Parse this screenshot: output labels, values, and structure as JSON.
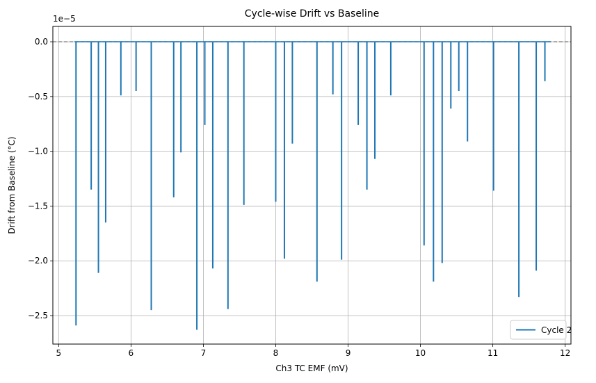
{
  "chart_data": {
    "type": "line",
    "title": "Cycle-wise Drift vs Baseline",
    "xlabel": "Ch3 TC EMF (mV)",
    "ylabel": "Drift from Baseline (°C)",
    "y_offset_label": "1e−5",
    "xlim": [
      4.92,
      12.08
    ],
    "ylim": [
      -2.76,
      0.14
    ],
    "x_ticks": [
      5,
      6,
      7,
      8,
      9,
      10,
      11,
      12
    ],
    "y_ticks": [
      0.0,
      -0.5,
      -1.0,
      -1.5,
      -2.0,
      -2.5
    ],
    "y_tick_labels": [
      "0.0",
      "−0.5",
      "−1.0",
      "−1.5",
      "−2.0",
      "−2.5"
    ],
    "y_scale_note": "y values in units of 1e-5 °C",
    "grid": true,
    "legend_position": "lower right",
    "baseline": {
      "y": 0,
      "x_range": [
        4.92,
        12.08
      ],
      "style": "dashed",
      "color": "#808080"
    },
    "series": [
      {
        "name": "Cycle 2",
        "color": "#1f77b4",
        "line_range": [
          5.22,
          11.8
        ],
        "spikes": [
          {
            "x": 5.24,
            "y": -2.59
          },
          {
            "x": 5.45,
            "y": -1.35
          },
          {
            "x": 5.55,
            "y": -2.11
          },
          {
            "x": 5.65,
            "y": -1.65
          },
          {
            "x": 5.86,
            "y": -0.49
          },
          {
            "x": 6.07,
            "y": -0.45
          },
          {
            "x": 6.28,
            "y": -2.45
          },
          {
            "x": 6.59,
            "y": -1.42
          },
          {
            "x": 6.69,
            "y": -1.01
          },
          {
            "x": 6.91,
            "y": -2.63
          },
          {
            "x": 7.02,
            "y": -0.76
          },
          {
            "x": 7.13,
            "y": -2.07
          },
          {
            "x": 7.34,
            "y": -2.44
          },
          {
            "x": 7.56,
            "y": -1.49
          },
          {
            "x": 8.0,
            "y": -1.46
          },
          {
            "x": 8.12,
            "y": -1.98
          },
          {
            "x": 8.23,
            "y": -0.93
          },
          {
            "x": 8.57,
            "y": -2.19
          },
          {
            "x": 8.79,
            "y": -0.48
          },
          {
            "x": 8.91,
            "y": -1.99
          },
          {
            "x": 9.14,
            "y": -0.76
          },
          {
            "x": 9.26,
            "y": -1.35
          },
          {
            "x": 9.37,
            "y": -1.07
          },
          {
            "x": 9.59,
            "y": -0.49
          },
          {
            "x": 10.05,
            "y": -1.86
          },
          {
            "x": 10.18,
            "y": -2.19
          },
          {
            "x": 10.3,
            "y": -2.02
          },
          {
            "x": 10.42,
            "y": -0.61
          },
          {
            "x": 10.53,
            "y": -0.45
          },
          {
            "x": 10.65,
            "y": -0.91
          },
          {
            "x": 11.01,
            "y": -1.36
          },
          {
            "x": 11.36,
            "y": -2.33
          },
          {
            "x": 11.6,
            "y": -2.09
          },
          {
            "x": 11.72,
            "y": -0.36
          }
        ]
      }
    ]
  }
}
